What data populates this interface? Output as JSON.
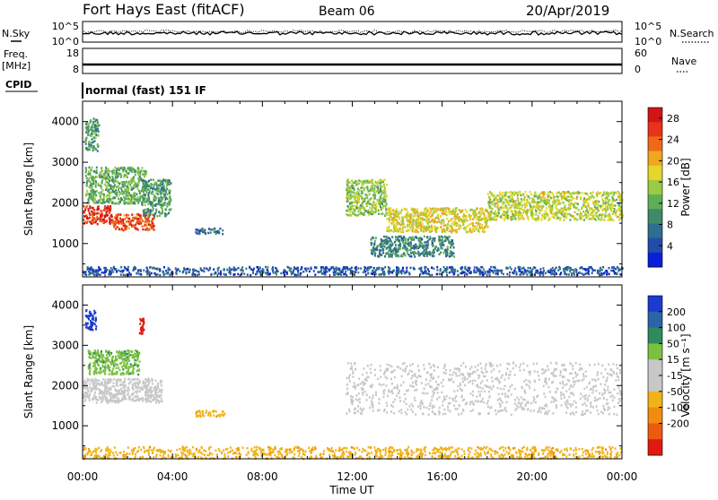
{
  "header": {
    "site_title": "Fort Hays East (fitACF)",
    "beam": "Beam 06",
    "date": "20/Apr/2019"
  },
  "noise_panel": {
    "left_label": "N.Sky",
    "right_label": "N.Search",
    "left_ticks": [
      "10^5",
      "10^0"
    ],
    "right_ticks": [
      "10^5",
      "10^0"
    ]
  },
  "freq_panel": {
    "left_label_top": "Freq.",
    "left_label_bottom": "[MHz]",
    "right_label": "Nave",
    "left_ticks": [
      "18",
      "8"
    ],
    "right_ticks": [
      "60",
      "0"
    ]
  },
  "cpid": {
    "label": "CPID",
    "mode": "normal (fast) 151 IF"
  },
  "chart_data": [
    {
      "type": "heatmap",
      "ylabel": "Slant Range [km]",
      "xlabel": "Time UT",
      "x_ticks": [
        "00:00",
        "04:00",
        "08:00",
        "12:00",
        "16:00",
        "20:00",
        "00:00"
      ],
      "y_ticks": [
        "1000",
        "2000",
        "3000",
        "4000"
      ],
      "ylim": [
        180,
        4500
      ],
      "xlim_hours": [
        0,
        24
      ],
      "colorbar": {
        "label": "Power [dB]",
        "ticks": [
          "4",
          "8",
          "12",
          "16",
          "20",
          "24",
          "28"
        ],
        "colors": [
          "#0a1fd8",
          "#234ca8",
          "#2e6e8e",
          "#3e8a6a",
          "#5fae56",
          "#9acb43",
          "#e4d72a",
          "#f0a61e",
          "#ee6a18",
          "#e8321a",
          "#d21414"
        ]
      },
      "regions": [
        {
          "t0": 0.0,
          "t1": 1.3,
          "r0": 1500,
          "r1": 1950,
          "value": 28
        },
        {
          "t0": 1.3,
          "t1": 3.2,
          "r0": 1350,
          "r1": 1750,
          "value": 26
        },
        {
          "t0": 0.1,
          "t1": 2.8,
          "r0": 2000,
          "r1": 2900,
          "value": 12
        },
        {
          "t0": 0.1,
          "t1": 0.7,
          "r0": 3300,
          "r1": 4100,
          "value": 10
        },
        {
          "t0": 2.6,
          "t1": 3.9,
          "r0": 1700,
          "r1": 2600,
          "value": 10
        },
        {
          "t0": 5.0,
          "t1": 6.2,
          "r0": 1250,
          "r1": 1400,
          "value": 5
        },
        {
          "t0": 11.7,
          "t1": 13.5,
          "r0": 1700,
          "r1": 2600,
          "value": 14
        },
        {
          "t0": 13.5,
          "t1": 18.0,
          "r0": 1300,
          "r1": 1900,
          "value": 18
        },
        {
          "t0": 18.0,
          "t1": 24.0,
          "r0": 1600,
          "r1": 2300,
          "value": 16
        },
        {
          "t0": 12.8,
          "t1": 16.5,
          "r0": 700,
          "r1": 1200,
          "value": 8
        },
        {
          "t0": 0.0,
          "t1": 24.0,
          "r0": 250,
          "r1": 450,
          "value": 4
        }
      ]
    },
    {
      "type": "heatmap",
      "ylabel": "Slant Range [km]",
      "xlabel": "Time UT",
      "x_ticks": [
        "00:00",
        "04:00",
        "08:00",
        "12:00",
        "16:00",
        "20:00",
        "00:00"
      ],
      "y_ticks": [
        "1000",
        "2000",
        "3000",
        "4000"
      ],
      "ylim": [
        180,
        4500
      ],
      "xlim_hours": [
        0,
        24
      ],
      "colorbar": {
        "label": "Velocity [m s⁻¹]",
        "ticks": [
          "200",
          "100",
          "50",
          "15",
          "-15",
          "-50",
          "-100",
          "-200"
        ],
        "colors": [
          "#1a3ad0",
          "#2c64a8",
          "#2f8a5c",
          "#7cc040",
          "#c8c8c8",
          "#c8c8c8",
          "#f0b418",
          "#f08c10",
          "#ec5a10",
          "#e01a10"
        ]
      },
      "regions": [
        {
          "t0": 0.0,
          "t1": 3.5,
          "r0": 1600,
          "r1": 2200,
          "value": 0
        },
        {
          "t0": 0.2,
          "t1": 2.5,
          "r0": 2300,
          "r1": 2900,
          "value": 60
        },
        {
          "t0": 0.1,
          "t1": 0.6,
          "r0": 3400,
          "r1": 3900,
          "value": 200
        },
        {
          "t0": 2.5,
          "t1": 2.7,
          "r0": 3300,
          "r1": 3700,
          "value": -200
        },
        {
          "t0": 5.0,
          "t1": 6.3,
          "r0": 1250,
          "r1": 1400,
          "value": -60
        },
        {
          "t0": 11.7,
          "t1": 24.0,
          "r0": 1300,
          "r1": 2600,
          "value": 0
        },
        {
          "t0": 0.0,
          "t1": 24.0,
          "r0": 200,
          "r1": 500,
          "value": -60
        }
      ]
    }
  ]
}
